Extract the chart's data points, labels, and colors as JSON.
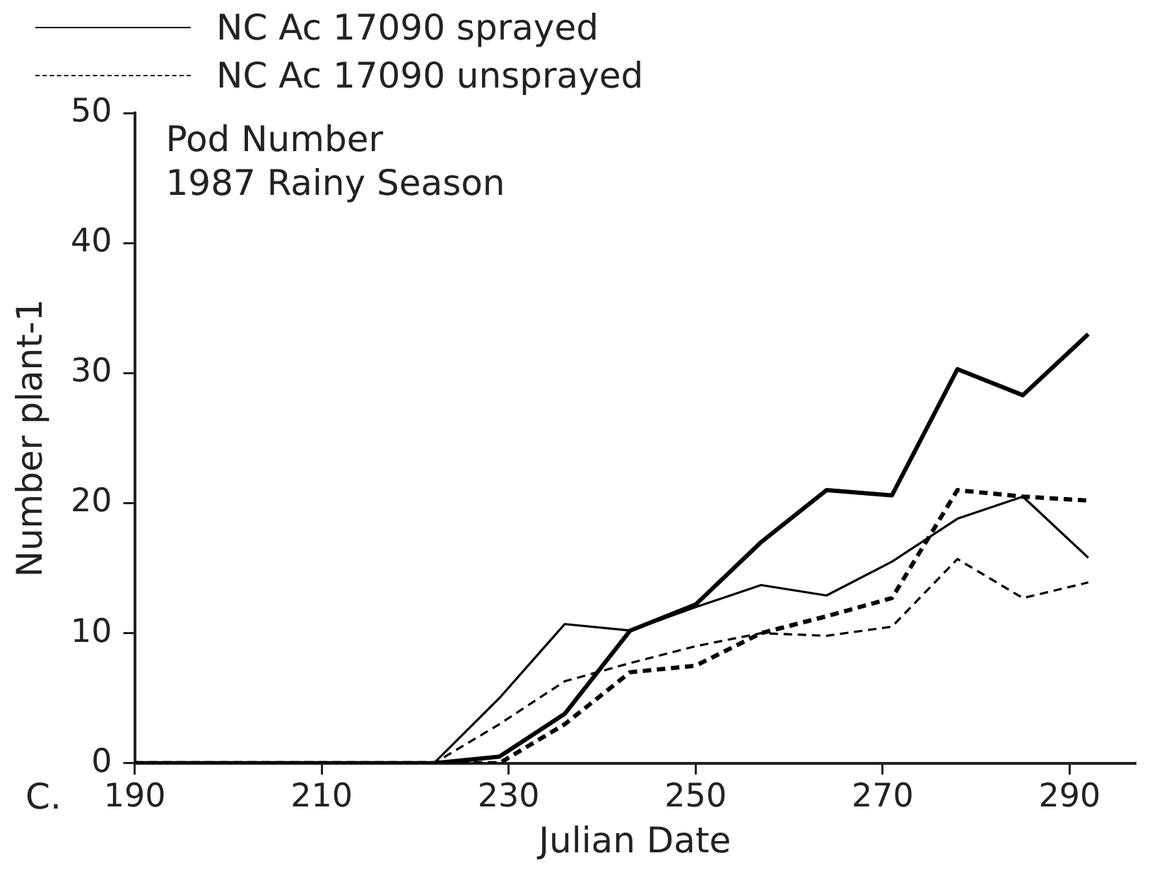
{
  "chart_data": {
    "type": "line",
    "xlabel": "Julian Date",
    "ylabel": "Number plant-1",
    "annotations": [
      "Pod Number",
      "1987 Rainy Season",
      "C."
    ],
    "xlim": [
      190,
      297
    ],
    "xticks": [
      190,
      210,
      230,
      250,
      270,
      290
    ],
    "ylim": [
      0,
      50
    ],
    "yticks": [
      0,
      10,
      20,
      30,
      40,
      50
    ],
    "grid": false,
    "legend": "top left",
    "marker": "none",
    "x": [
      190,
      222,
      229,
      236,
      243,
      250,
      257,
      264,
      271,
      278,
      285,
      292
    ],
    "series": [
      {
        "name": "NC Ac 17090 sprayed",
        "color": "#000000",
        "line_style": "solid",
        "values": [
          0,
          0,
          5,
          10.7,
          10.2,
          12,
          13.7,
          12.9,
          15.5,
          18.8,
          20.5,
          15.8
        ]
      },
      {
        "name": "NC Ac 17090 unsprayed",
        "color": "#000000",
        "line_style": "dashed",
        "values": [
          0,
          0,
          3,
          6.3,
          7.7,
          9,
          10,
          9.8,
          10.5,
          15.7,
          12.7,
          13.9
        ]
      },
      {
        "color": "#000000",
        "line_style": "solid",
        "values": [
          0,
          0,
          0.5,
          3.8,
          10.2,
          12.2,
          17,
          21,
          20.6,
          30.3,
          28.3,
          33
        ]
      },
      {
        "color": "#000000",
        "line_style": "dashed",
        "values": [
          0,
          0,
          0,
          3,
          7,
          7.5,
          10,
          11.3,
          12.7,
          21,
          20.5,
          20.2
        ]
      }
    ]
  }
}
